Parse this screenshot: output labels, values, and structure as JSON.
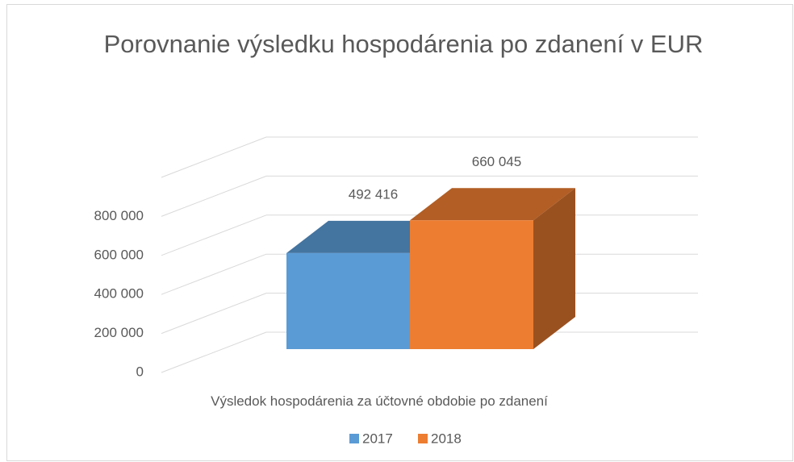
{
  "chart_data": {
    "type": "bar3d",
    "title": "Porovnanie výsledku hospodárenia po zdanení v EUR",
    "categories": [
      "Výsledok hospodárenia za účtovné obdobie po zdanení"
    ],
    "series": [
      {
        "name": "2017",
        "color": "#5b9bd5",
        "values": [
          492416
        ],
        "value_labels": [
          "492 416"
        ]
      },
      {
        "name": "2018",
        "color": "#ed7d31",
        "values": [
          660045
        ],
        "value_labels": [
          "660 045"
        ]
      }
    ],
    "ylim": [
      0,
      1000000
    ],
    "yticks": [
      0,
      {
        "value": 200000,
        "label": "200 000"
      },
      {
        "value": 400000,
        "label": "400 000"
      },
      {
        "value": 600000,
        "label": "600 000"
      },
      {
        "value": 800000,
        "label": "800 000"
      }
    ],
    "grid": true,
    "legend": "bottom"
  }
}
